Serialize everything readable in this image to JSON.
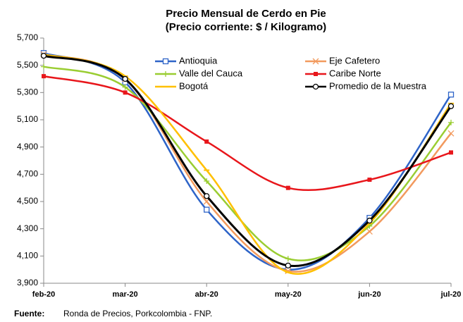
{
  "chart_data": {
    "type": "line",
    "title": "Precio Mensual de Cerdo en Pie",
    "subtitle": "(Precio corriente: $ / Kilogramo)",
    "categories": [
      "feb-20",
      "mar-20",
      "abr-20",
      "may-20",
      "jun-20",
      "jul-20"
    ],
    "series": [
      {
        "name": "Antioquia",
        "color": "#2e64c8",
        "marker": "square",
        "values": [
          5590,
          5375,
          4440,
          4000,
          4380,
          5285
        ]
      },
      {
        "name": "Eje Cafetero",
        "color": "#f29a5e",
        "marker": "x",
        "values": [
          5580,
          5400,
          4500,
          3990,
          4280,
          5000
        ]
      },
      {
        "name": "Valle del Cauca",
        "color": "#9acd32",
        "marker": "plus",
        "values": [
          5490,
          5340,
          4650,
          4080,
          4320,
          5080
        ]
      },
      {
        "name": "Caribe Norte",
        "color": "#e8161b",
        "marker": "dot",
        "values": [
          5420,
          5300,
          4940,
          4600,
          4660,
          4860
        ]
      },
      {
        "name": "Bogotá",
        "color": "#ffc000",
        "marker": "dash",
        "values": [
          5580,
          5420,
          4730,
          3980,
          4340,
          5220
        ]
      },
      {
        "name": "Promedio de la Muestra",
        "color": "#000000",
        "marker": "circle",
        "values": [
          5570,
          5400,
          4540,
          4030,
          4360,
          5200
        ]
      }
    ],
    "ylim": [
      3900,
      5700
    ],
    "yticks": [
      {
        "value": 3900,
        "label": "3,900"
      },
      {
        "value": 4100,
        "label": "4,100"
      },
      {
        "value": 4300,
        "label": "4,300"
      },
      {
        "value": 4500,
        "label": "4,500"
      },
      {
        "value": 4700,
        "label": "4,700"
      },
      {
        "value": 4900,
        "label": "4,900"
      },
      {
        "value": 5100,
        "label": "5,100"
      },
      {
        "value": 5300,
        "label": "5,300"
      },
      {
        "value": 5500,
        "label": "5,500"
      },
      {
        "value": 5700,
        "label": "5,700"
      }
    ],
    "grid": false,
    "source_label": "Fuente:",
    "source_text": "Ronda de Precios, Porkcolombia  - FNP."
  }
}
